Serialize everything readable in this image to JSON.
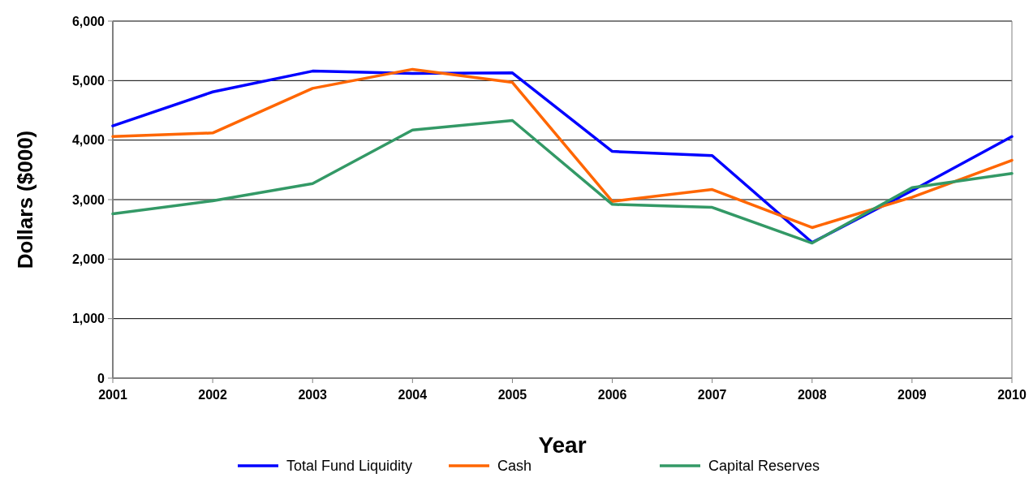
{
  "chart_data": {
    "type": "line",
    "xlabel": "Year",
    "ylabel": "Dollars ($000)",
    "categories": [
      "2001",
      "2002",
      "2003",
      "2004",
      "2005",
      "2006",
      "2007",
      "2008",
      "2009",
      "2010"
    ],
    "series": [
      {
        "name": "Total Fund Liquidity",
        "color": "#0000ff",
        "values": [
          4240,
          4810,
          5160,
          5120,
          5130,
          3810,
          3740,
          2280,
          3150,
          4060
        ]
      },
      {
        "name": "Cash",
        "color": "#ff6600",
        "values": [
          4060,
          4120,
          4870,
          5190,
          4970,
          2970,
          3170,
          2530,
          3040,
          3660
        ]
      },
      {
        "name": "Capital Reserves",
        "color": "#339966",
        "values": [
          2760,
          2980,
          3270,
          4170,
          4330,
          2920,
          2870,
          2270,
          3200,
          3440
        ]
      }
    ],
    "ylim": [
      0,
      6000
    ],
    "yticks": [
      {
        "value": 0,
        "label": "0"
      },
      {
        "value": 1000,
        "label": "1,000"
      },
      {
        "value": 2000,
        "label": "2,000"
      },
      {
        "value": 3000,
        "label": "3,000"
      },
      {
        "value": 4000,
        "label": "4,000"
      },
      {
        "value": 5000,
        "label": "5,000"
      },
      {
        "value": 6000,
        "label": "6,000"
      }
    ],
    "grid": "y",
    "legend": "bottom",
    "marker": "none",
    "line_style": "solid"
  }
}
